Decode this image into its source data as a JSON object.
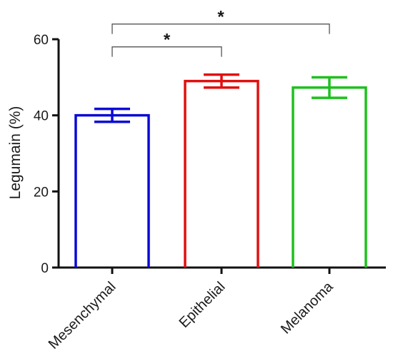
{
  "chart_data": {
    "type": "bar",
    "ylabel": "Legumain (%)",
    "ylim": [
      0,
      60
    ],
    "yticks": [
      0,
      20,
      40,
      60
    ],
    "categories": [
      "Mesenchymal",
      "Epithelial",
      "Melanoma"
    ],
    "values": [
      40,
      49,
      47.3
    ],
    "error": [
      1.7,
      1.7,
      2.7
    ],
    "colors": [
      "#0a0ad6",
      "#e01010",
      "#1ec01e"
    ],
    "bar_style": "outline",
    "grid": false,
    "significance": [
      {
        "from": "Mesenchymal",
        "to": "Epithelial",
        "label": "*",
        "y": 58
      },
      {
        "from": "Mesenchymal",
        "to": "Melanoma",
        "label": "*",
        "y": 64
      }
    ]
  }
}
